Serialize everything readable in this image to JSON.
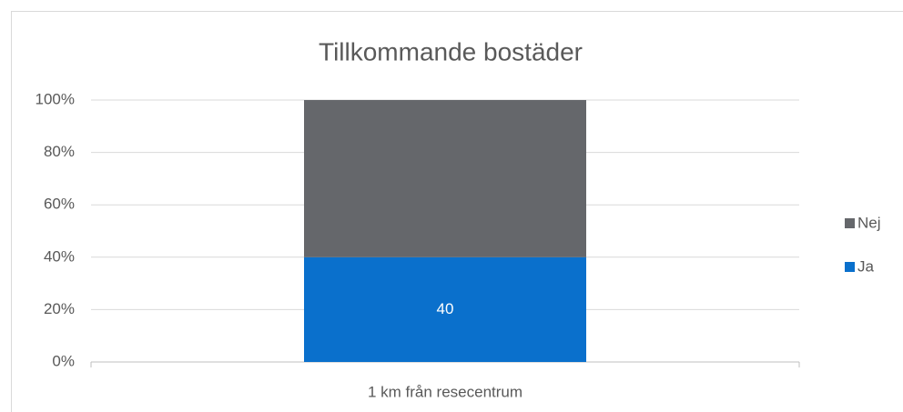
{
  "chart_data": {
    "type": "stacked_bar",
    "title": "Tillkommande bostäder",
    "categories": [
      "1 km från resecentrum"
    ],
    "series": [
      {
        "name": "Ja",
        "color": "#0a70cc",
        "values": [
          40
        ]
      },
      {
        "name": "Nej",
        "color": "#65676b",
        "values": [
          60
        ]
      }
    ],
    "ylim": [
      0,
      100
    ],
    "yticks": [
      {
        "value": 0,
        "label": "0%"
      },
      {
        "value": 20,
        "label": "20%"
      },
      {
        "value": 40,
        "label": "40%"
      },
      {
        "value": 60,
        "label": "60%"
      },
      {
        "value": 80,
        "label": "80%"
      },
      {
        "value": 100,
        "label": "100%"
      }
    ],
    "grid": true,
    "legend": "right"
  }
}
